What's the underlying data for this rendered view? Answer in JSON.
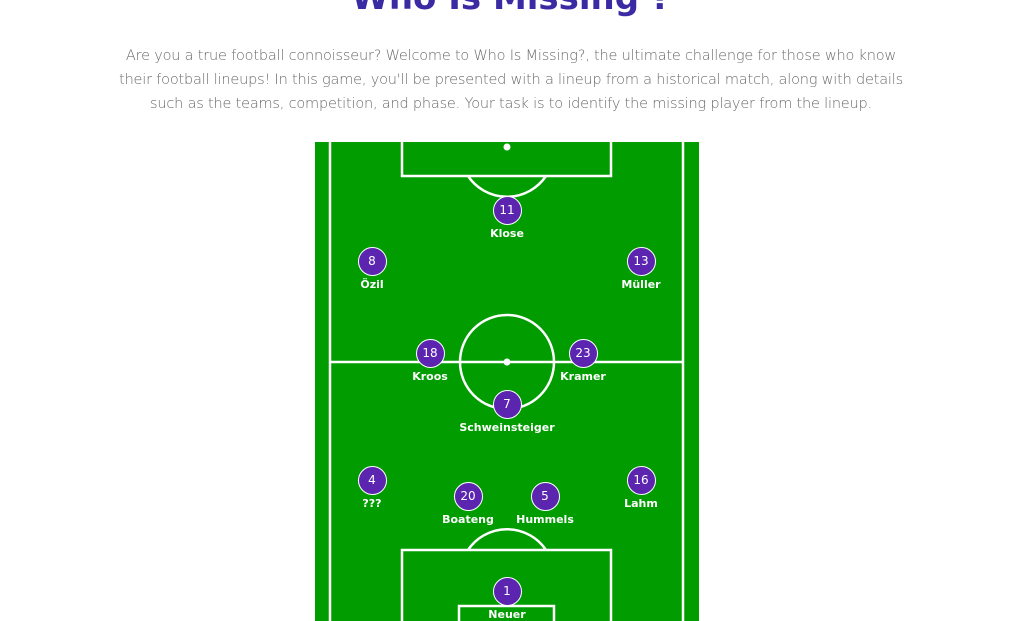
{
  "header": {
    "title": "Who Is Missing ?",
    "intro": "Are you a true football connoisseur? Welcome to Who Is Missing?, the ultimate challenge for those who know their football lineups! In this game, you'll be presented with a lineup from a historical match, along with details such as the teams, competition, and phase. Your task is to identify the missing player from the lineup."
  },
  "colors": {
    "title": "#3a2aa4",
    "pitch": "#009c00",
    "player_badge": "#5b25b0",
    "lines": "#ffffff"
  },
  "lineup": [
    {
      "number": "11",
      "name": "Klose"
    },
    {
      "number": "8",
      "name": "Özil"
    },
    {
      "number": "13",
      "name": "Müller"
    },
    {
      "number": "18",
      "name": "Kroos"
    },
    {
      "number": "23",
      "name": "Kramer"
    },
    {
      "number": "7",
      "name": "Schweinsteiger"
    },
    {
      "number": "4",
      "name": "???"
    },
    {
      "number": "20",
      "name": "Boateng"
    },
    {
      "number": "5",
      "name": "Hummels"
    },
    {
      "number": "16",
      "name": "Lahm"
    },
    {
      "number": "1",
      "name": "Neuer"
    }
  ]
}
